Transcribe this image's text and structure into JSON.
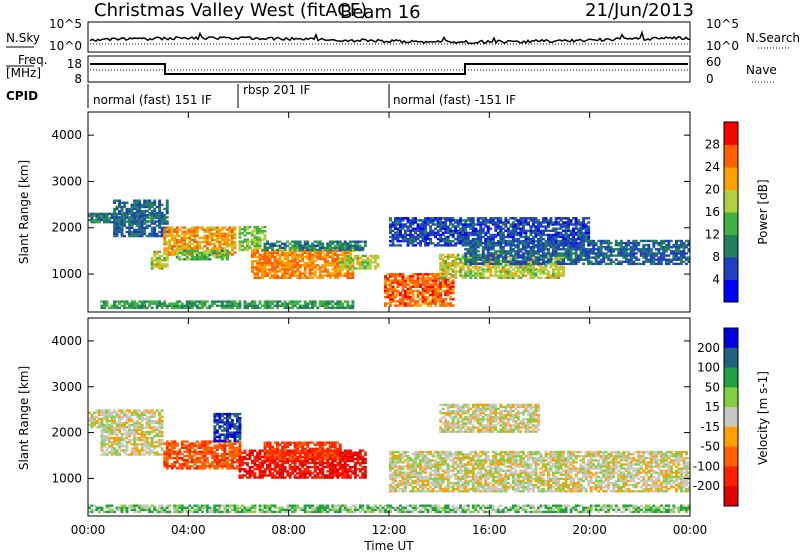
{
  "header": {
    "station": "Christmas Valley West (fitACF)",
    "beam": "Beam 16",
    "date": "21/Jun/2013"
  },
  "noise_panel": {
    "left_label": "N.Sky",
    "right_label": "N.Search",
    "left_ticks": [
      "10^5",
      "10^0"
    ],
    "right_ticks": [
      "10^5",
      "10^0"
    ]
  },
  "freq_panel": {
    "left_label_1": "Freq.",
    "left_label_2": "[MHz]",
    "right_label": "Nave",
    "left_ticks": [
      "18",
      "8"
    ],
    "right_ticks": [
      "60",
      "0"
    ]
  },
  "cpid": {
    "label": "CPID",
    "segments": [
      {
        "text": "normal (fast) 151 IF",
        "start_hour": 0.0,
        "end_hour": 6.0
      },
      {
        "text": "rbsp 201 IF",
        "start_hour": 6.0,
        "end_hour": 12.0
      },
      {
        "text": "normal (fast) -151 IF",
        "start_hour": 12.0,
        "end_hour": 24.0
      }
    ]
  },
  "chart_data": [
    {
      "type": "heatmap",
      "title": "Power",
      "ylabel": "Slant Range [km]",
      "xlabel": "Time UT",
      "x_range_hours": [
        0,
        24
      ],
      "ylim": [
        180,
        4500
      ],
      "y_ticks": [
        "1000",
        "2000",
        "3000",
        "4000"
      ],
      "colorbar": {
        "label": "Power [dB]",
        "ticks": [
          "4",
          "8",
          "12",
          "16",
          "20",
          "24",
          "28"
        ],
        "colors": [
          "#0000ff",
          "#2040c0",
          "#208060",
          "#40b040",
          "#b0d040",
          "#ffa000",
          "#ff6000",
          "#ff0000"
        ]
      },
      "regions": [
        {
          "t": [
            0.0,
            3.0
          ],
          "r": [
            2100,
            2300
          ],
          "v": 10
        },
        {
          "t": [
            1.0,
            3.2
          ],
          "r": [
            1800,
            2600
          ],
          "v": 8
        },
        {
          "t": [
            2.5,
            3.2
          ],
          "r": [
            1100,
            1500
          ],
          "v": 18
        },
        {
          "t": [
            3.0,
            5.8
          ],
          "r": [
            1400,
            2000
          ],
          "v": 22
        },
        {
          "t": [
            3.5,
            5.5
          ],
          "r": [
            1300,
            1500
          ],
          "v": 14
        },
        {
          "t": [
            6.0,
            7.0
          ],
          "r": [
            1500,
            2000
          ],
          "v": 16
        },
        {
          "t": [
            6.5,
            10.5
          ],
          "r": [
            900,
            1500
          ],
          "v": 24
        },
        {
          "t": [
            7.0,
            11.0
          ],
          "r": [
            1500,
            1700
          ],
          "v": 10
        },
        {
          "t": [
            10.0,
            11.5
          ],
          "r": [
            1100,
            1400
          ],
          "v": 18
        },
        {
          "t": [
            11.8,
            14.5
          ],
          "r": [
            300,
            1000
          ],
          "v": 26
        },
        {
          "t": [
            12.0,
            20.0
          ],
          "r": [
            1600,
            2200
          ],
          "v": 6
        },
        {
          "t": [
            14.0,
            19.0
          ],
          "r": [
            900,
            1400
          ],
          "v": 18
        },
        {
          "t": [
            15.0,
            24.0
          ],
          "r": [
            1200,
            1700
          ],
          "v": 8
        },
        {
          "t": [
            0.5,
            10.5
          ],
          "r": [
            250,
            400
          ],
          "v": 12
        }
      ]
    },
    {
      "type": "heatmap",
      "title": "Velocity",
      "ylabel": "Slant Range [km]",
      "xlabel": "Time UT",
      "x_range_hours": [
        0,
        24
      ],
      "ylim": [
        180,
        4500
      ],
      "y_ticks": [
        "1000",
        "2000",
        "3000",
        "4000"
      ],
      "x_ticks": [
        "00:00",
        "04:00",
        "08:00",
        "12:00",
        "16:00",
        "20:00",
        "00:00"
      ],
      "colorbar": {
        "label": "Velocity [m s-1]",
        "ticks": [
          "200",
          "100",
          "50",
          "15",
          "-15",
          "-50",
          "-100",
          "-200"
        ],
        "colors": [
          "#0000e0",
          "#206080",
          "#20a040",
          "#80d040",
          "#c8c8c0",
          "#ffa000",
          "#ff6000",
          "#ff2000",
          "#e00000"
        ]
      },
      "regions": [
        {
          "t": [
            0.0,
            3.0
          ],
          "r": [
            2100,
            2500
          ],
          "v": 0
        },
        {
          "t": [
            0.5,
            3.0
          ],
          "r": [
            1500,
            2100
          ],
          "v": 0
        },
        {
          "t": [
            3.0,
            6.0
          ],
          "r": [
            1200,
            1800
          ],
          "v": -60
        },
        {
          "t": [
            5.0,
            6.0
          ],
          "r": [
            1800,
            2400
          ],
          "v": 150
        },
        {
          "t": [
            6.0,
            11.0
          ],
          "r": [
            1000,
            1600
          ],
          "v": -150
        },
        {
          "t": [
            7.0,
            10.0
          ],
          "r": [
            1400,
            1800
          ],
          "v": -80
        },
        {
          "t": [
            12.0,
            24.0
          ],
          "r": [
            700,
            1600
          ],
          "v": 0
        },
        {
          "t": [
            14.0,
            18.0
          ],
          "r": [
            2000,
            2600
          ],
          "v": 0
        },
        {
          "t": [
            0.0,
            24.0
          ],
          "r": [
            250,
            400
          ],
          "v": 30
        }
      ]
    }
  ]
}
